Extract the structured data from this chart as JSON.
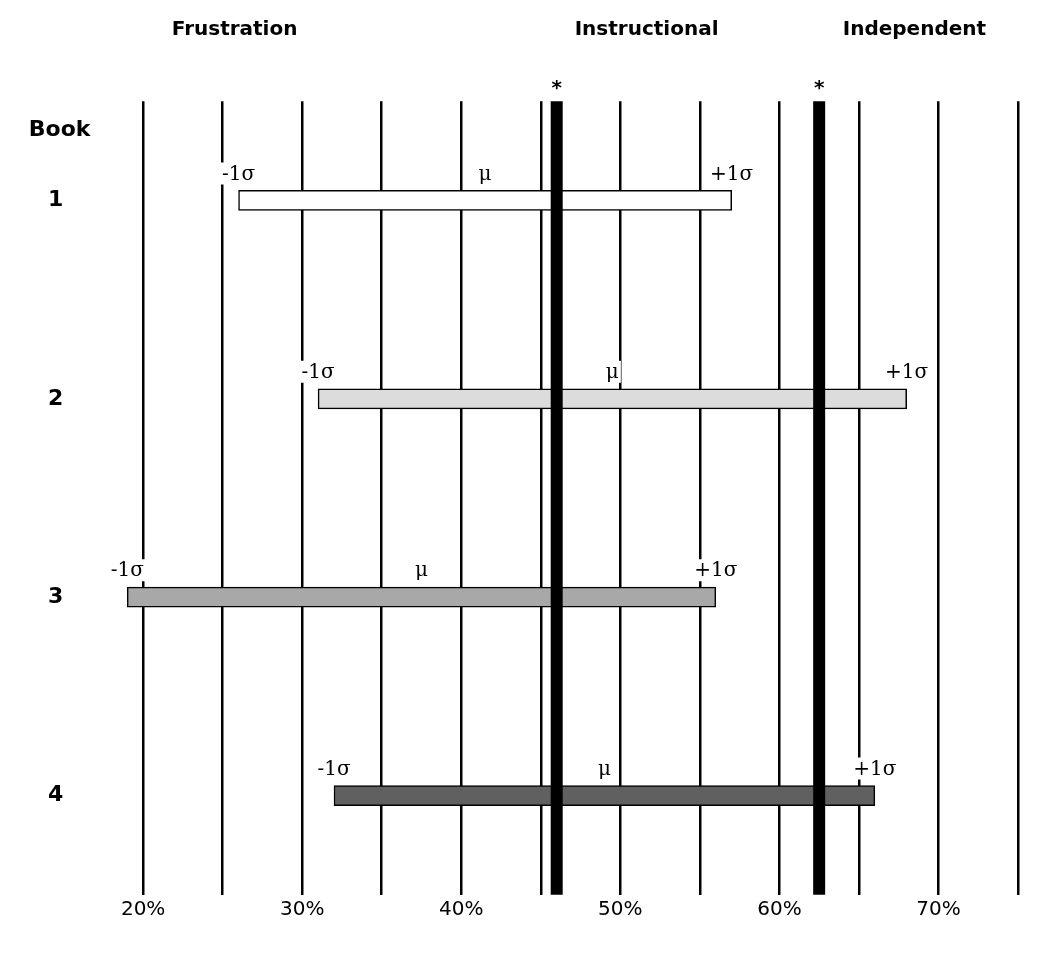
{
  "chart_data": {
    "type": "bar",
    "orientation": "horizontal",
    "ylabel": "Book",
    "categories": [
      "1",
      "2",
      "3",
      "4"
    ],
    "base": [
      26,
      31,
      19,
      32
    ],
    "values": [
      31,
      37,
      37,
      34
    ],
    "colors": [
      "#ffffff",
      "#dcdcdc",
      "#a8a8a8",
      "#606060"
    ],
    "xlim": [
      18,
      75
    ],
    "xticks": [
      {
        "value": 20,
        "label": "20%"
      },
      {
        "value": 25,
        "label": null
      },
      {
        "value": 30,
        "label": "30%"
      },
      {
        "value": 35,
        "label": null
      },
      {
        "value": 40,
        "label": "40%"
      },
      {
        "value": 45,
        "label": null
      },
      {
        "value": 50,
        "label": "50%"
      },
      {
        "value": 55,
        "label": null
      },
      {
        "value": 60,
        "label": "60%"
      },
      {
        "value": 65,
        "label": null
      },
      {
        "value": 70,
        "label": "70%"
      },
      {
        "value": 75,
        "label": null
      }
    ],
    "grid": "x",
    "ref_lines": [
      {
        "axis": "x",
        "value": 46,
        "label": "*",
        "color": "#000000"
      },
      {
        "axis": "x",
        "value": 62.5,
        "label": "*",
        "color": "#000000"
      }
    ],
    "annotations": [
      "Frustration",
      "Instructional",
      "Independent",
      {
        "text": "-1σ",
        "x": 26,
        "y": "1"
      },
      "μ",
      {
        "text": "+1σ",
        "x": 57,
        "y": "1"
      },
      {
        "text": "-1σ",
        "x": 31,
        "y": "2"
      },
      "μ",
      {
        "text": "+1σ",
        "x": 68,
        "y": "2"
      },
      {
        "text": "-1σ",
        "x": 19,
        "y": "3"
      },
      "μ",
      {
        "text": "+1σ",
        "x": 56,
        "y": "3"
      },
      {
        "text": "-1σ",
        "x": 32,
        "y": "4"
      },
      "μ",
      {
        "text": "+1σ",
        "x": 66,
        "y": "4"
      }
    ]
  }
}
